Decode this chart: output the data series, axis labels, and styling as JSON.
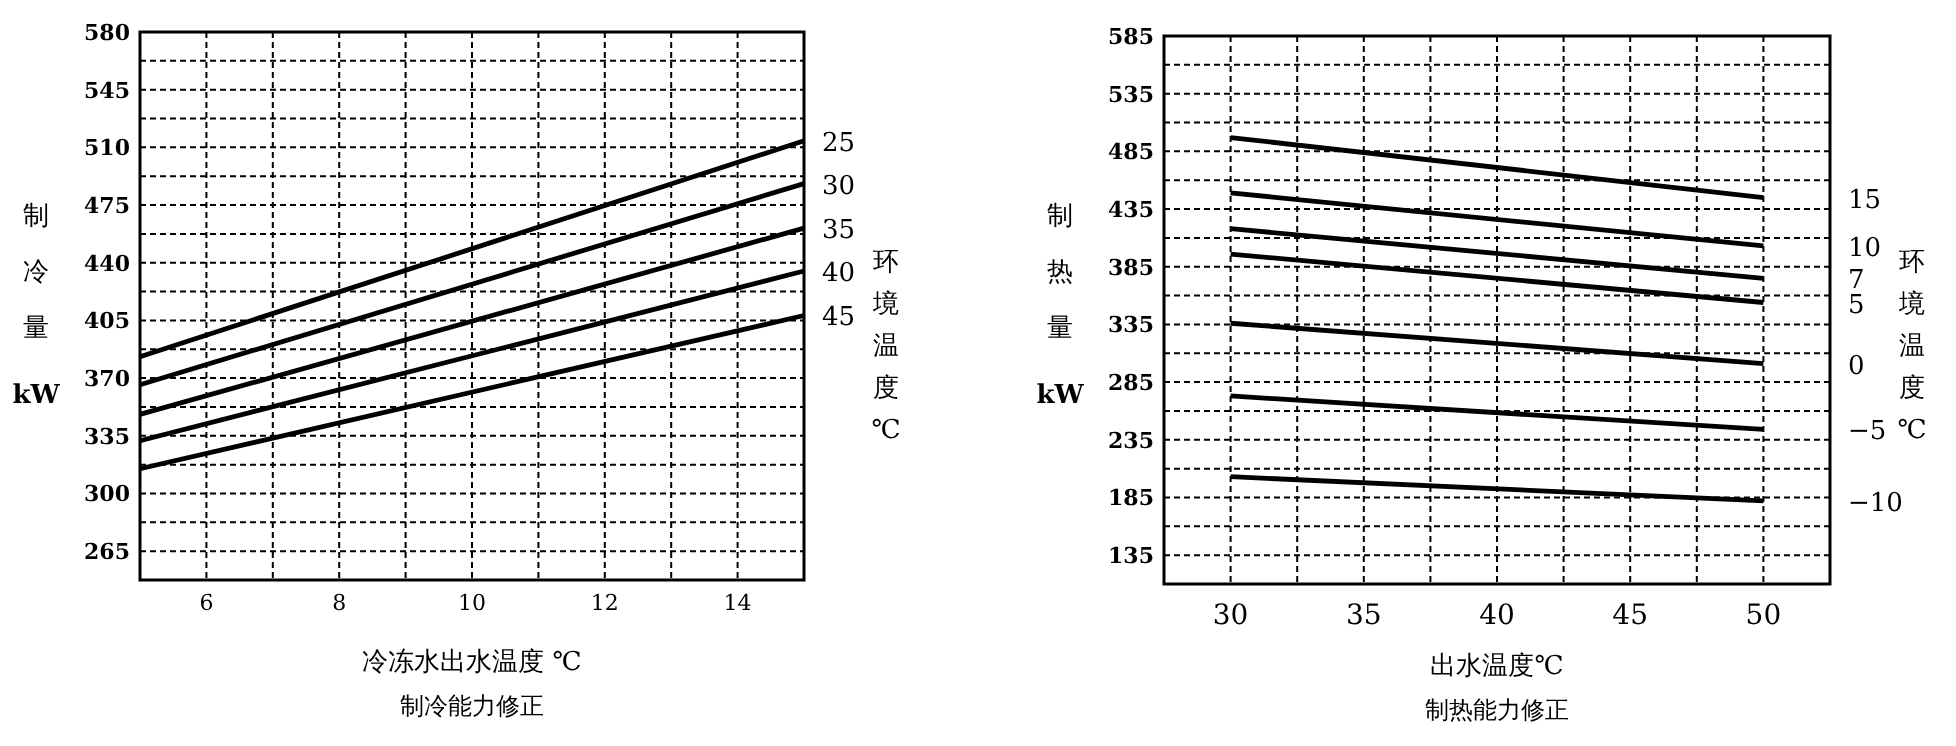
{
  "chart_data": [
    {
      "type": "line",
      "title": "制冷能力修正",
      "xlabel": "冷冻水出水温度 ℃",
      "ylabel": "制冷量 kW",
      "legend_title": "环境温度℃",
      "grid": true,
      "x": [
        5,
        15
      ],
      "xlim": [
        5,
        15
      ],
      "ylim": [
        247.5,
        580
      ],
      "xticks": [
        {
          "value": 5,
          "label": null
        },
        6,
        {
          "value": 7,
          "label": null
        },
        8,
        {
          "value": 9,
          "label": null
        },
        10,
        {
          "value": 11,
          "label": null
        },
        12,
        {
          "value": 13,
          "label": null
        },
        14,
        {
          "value": 15,
          "label": null
        }
      ],
      "yticks": [
        265,
        {
          "value": 282.5,
          "label": null
        },
        300,
        {
          "value": 317.5,
          "label": null
        },
        335,
        {
          "value": 352.5,
          "label": null
        },
        370,
        {
          "value": 387.5,
          "label": null
        },
        405,
        {
          "value": 422.5,
          "label": null
        },
        440,
        {
          "value": 457.5,
          "label": null
        },
        475,
        {
          "value": 492.5,
          "label": null
        },
        510,
        {
          "value": 527.5,
          "label": null
        },
        545,
        {
          "value": 562.5,
          "label": null
        },
        580
      ],
      "series": [
        {
          "name": "25",
          "color": "#000000",
          "values": [
            383,
            514
          ]
        },
        {
          "name": "30",
          "color": "#000000",
          "values": [
            366,
            488
          ]
        },
        {
          "name": "35",
          "color": "#000000",
          "values": [
            348,
            461
          ]
        },
        {
          "name": "40",
          "color": "#000000",
          "values": [
            332,
            435
          ]
        },
        {
          "name": "45",
          "color": "#000000",
          "values": [
            315,
            408
          ]
        }
      ]
    },
    {
      "type": "line",
      "title": "制热能力修正",
      "xlabel": "出水温度℃",
      "ylabel": "制热量 kW",
      "legend_title": "环境温度℃",
      "grid": true,
      "x": [
        30,
        50
      ],
      "xlim": [
        27.5,
        52.5
      ],
      "ylim": [
        110,
        585
      ],
      "xticks": [
        30,
        {
          "value": 32.5,
          "label": null
        },
        35,
        {
          "value": 37.5,
          "label": null
        },
        40,
        {
          "value": 42.5,
          "label": null
        },
        45,
        {
          "value": 47.5,
          "label": null
        },
        50
      ],
      "yticks": [
        135,
        {
          "value": 160,
          "label": null
        },
        185,
        {
          "value": 210,
          "label": null
        },
        235,
        {
          "value": 260,
          "label": null
        },
        285,
        {
          "value": 310,
          "label": null
        },
        335,
        {
          "value": 360,
          "label": null
        },
        385,
        {
          "value": 410,
          "label": null
        },
        435,
        {
          "value": 460,
          "label": null
        },
        485,
        {
          "value": 510,
          "label": null
        },
        535,
        {
          "value": 560,
          "label": null
        },
        585
      ],
      "series": [
        {
          "name": "15",
          "color": "#000000",
          "values": [
            497,
            445
          ]
        },
        {
          "name": "10",
          "color": "#000000",
          "values": [
            449,
            403
          ]
        },
        {
          "name": "7",
          "color": "#000000",
          "values": [
            418,
            375
          ]
        },
        {
          "name": "5",
          "color": "#000000",
          "values": [
            396,
            354
          ]
        },
        {
          "name": "0",
          "color": "#000000",
          "values": [
            336,
            301
          ]
        },
        {
          "name": "−5",
          "color": "#000000",
          "values": [
            273,
            244
          ]
        },
        {
          "name": "−10",
          "color": "#000000",
          "values": [
            203,
            182
          ]
        }
      ]
    }
  ]
}
